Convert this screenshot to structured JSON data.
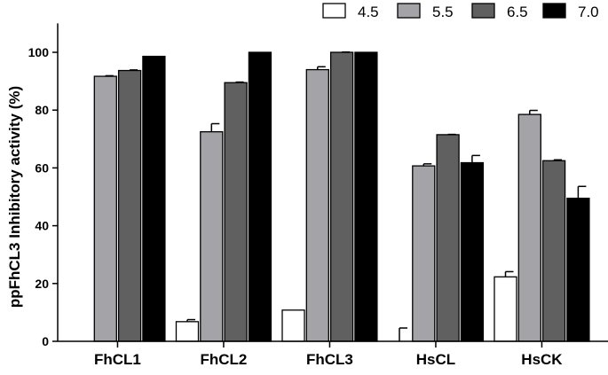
{
  "chart_data": {
    "type": "bar",
    "title": "",
    "xlabel": "",
    "ylabel": "ppFhCL3 Inhibitory activity (%)",
    "ylim": [
      0,
      110
    ],
    "yticks": [
      0,
      20,
      40,
      60,
      80,
      100
    ],
    "categories": [
      "FhCL1",
      "FhCL2",
      "FhCL3",
      "HsCL",
      "HsCK"
    ],
    "legend_position": "top-right",
    "series": [
      {
        "name": "4.5",
        "color": "#ffffff",
        "values": [
          null,
          6.8,
          10.8,
          0,
          22.3
        ],
        "errors": [
          null,
          0.7,
          0,
          4.6,
          1.8
        ]
      },
      {
        "name": "5.5",
        "color": "#a3a3a8",
        "values": [
          91.7,
          72.5,
          94.0,
          60.7,
          78.5
        ],
        "errors": [
          0.2,
          2.8,
          1.0,
          0.7,
          1.4
        ]
      },
      {
        "name": "6.5",
        "color": "#606060",
        "values": [
          93.7,
          89.5,
          100,
          71.5,
          62.5
        ],
        "errors": [
          0.2,
          0.2,
          0.1,
          0.1,
          0.3
        ]
      },
      {
        "name": "7.0",
        "color": "#000000",
        "values": [
          98.6,
          100,
          100,
          61.8,
          49.5
        ],
        "errors": [
          0,
          0,
          0,
          2.5,
          4.1
        ]
      }
    ]
  }
}
